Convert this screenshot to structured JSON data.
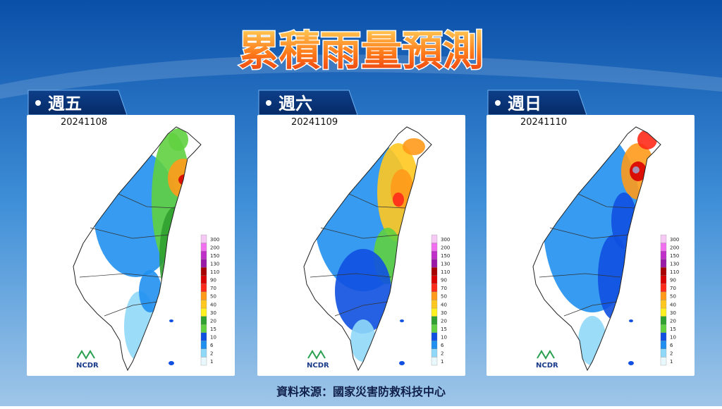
{
  "header": {
    "title": "累積雨量預測"
  },
  "panels": [
    {
      "day": "週五",
      "date": "20241108"
    },
    {
      "day": "週六",
      "date": "20241109"
    },
    {
      "day": "週日",
      "date": "20241110"
    }
  ],
  "legend": [
    {
      "label": "300",
      "color": "#f6c8f4"
    },
    {
      "label": "200",
      "color": "#f070f0"
    },
    {
      "label": "150",
      "color": "#c030c8"
    },
    {
      "label": "130",
      "color": "#9a1aa8"
    },
    {
      "label": "110",
      "color": "#a80000"
    },
    {
      "label": "90",
      "color": "#d80000"
    },
    {
      "label": "70",
      "color": "#ff2a1a"
    },
    {
      "label": "50",
      "color": "#ff9a1a"
    },
    {
      "label": "40",
      "color": "#ffc820"
    },
    {
      "label": "30",
      "color": "#fff020"
    },
    {
      "label": "20",
      "color": "#30a030"
    },
    {
      "label": "15",
      "color": "#60d040"
    },
    {
      "label": "10",
      "color": "#1050e0"
    },
    {
      "label": "6",
      "color": "#2090f0"
    },
    {
      "label": "2",
      "color": "#90d8f8"
    },
    {
      "label": "1",
      "color": "#e8f8fc"
    }
  ],
  "logo": "NCDR",
  "footer": {
    "source": "資料來源：國家災害防救科技中心"
  }
}
